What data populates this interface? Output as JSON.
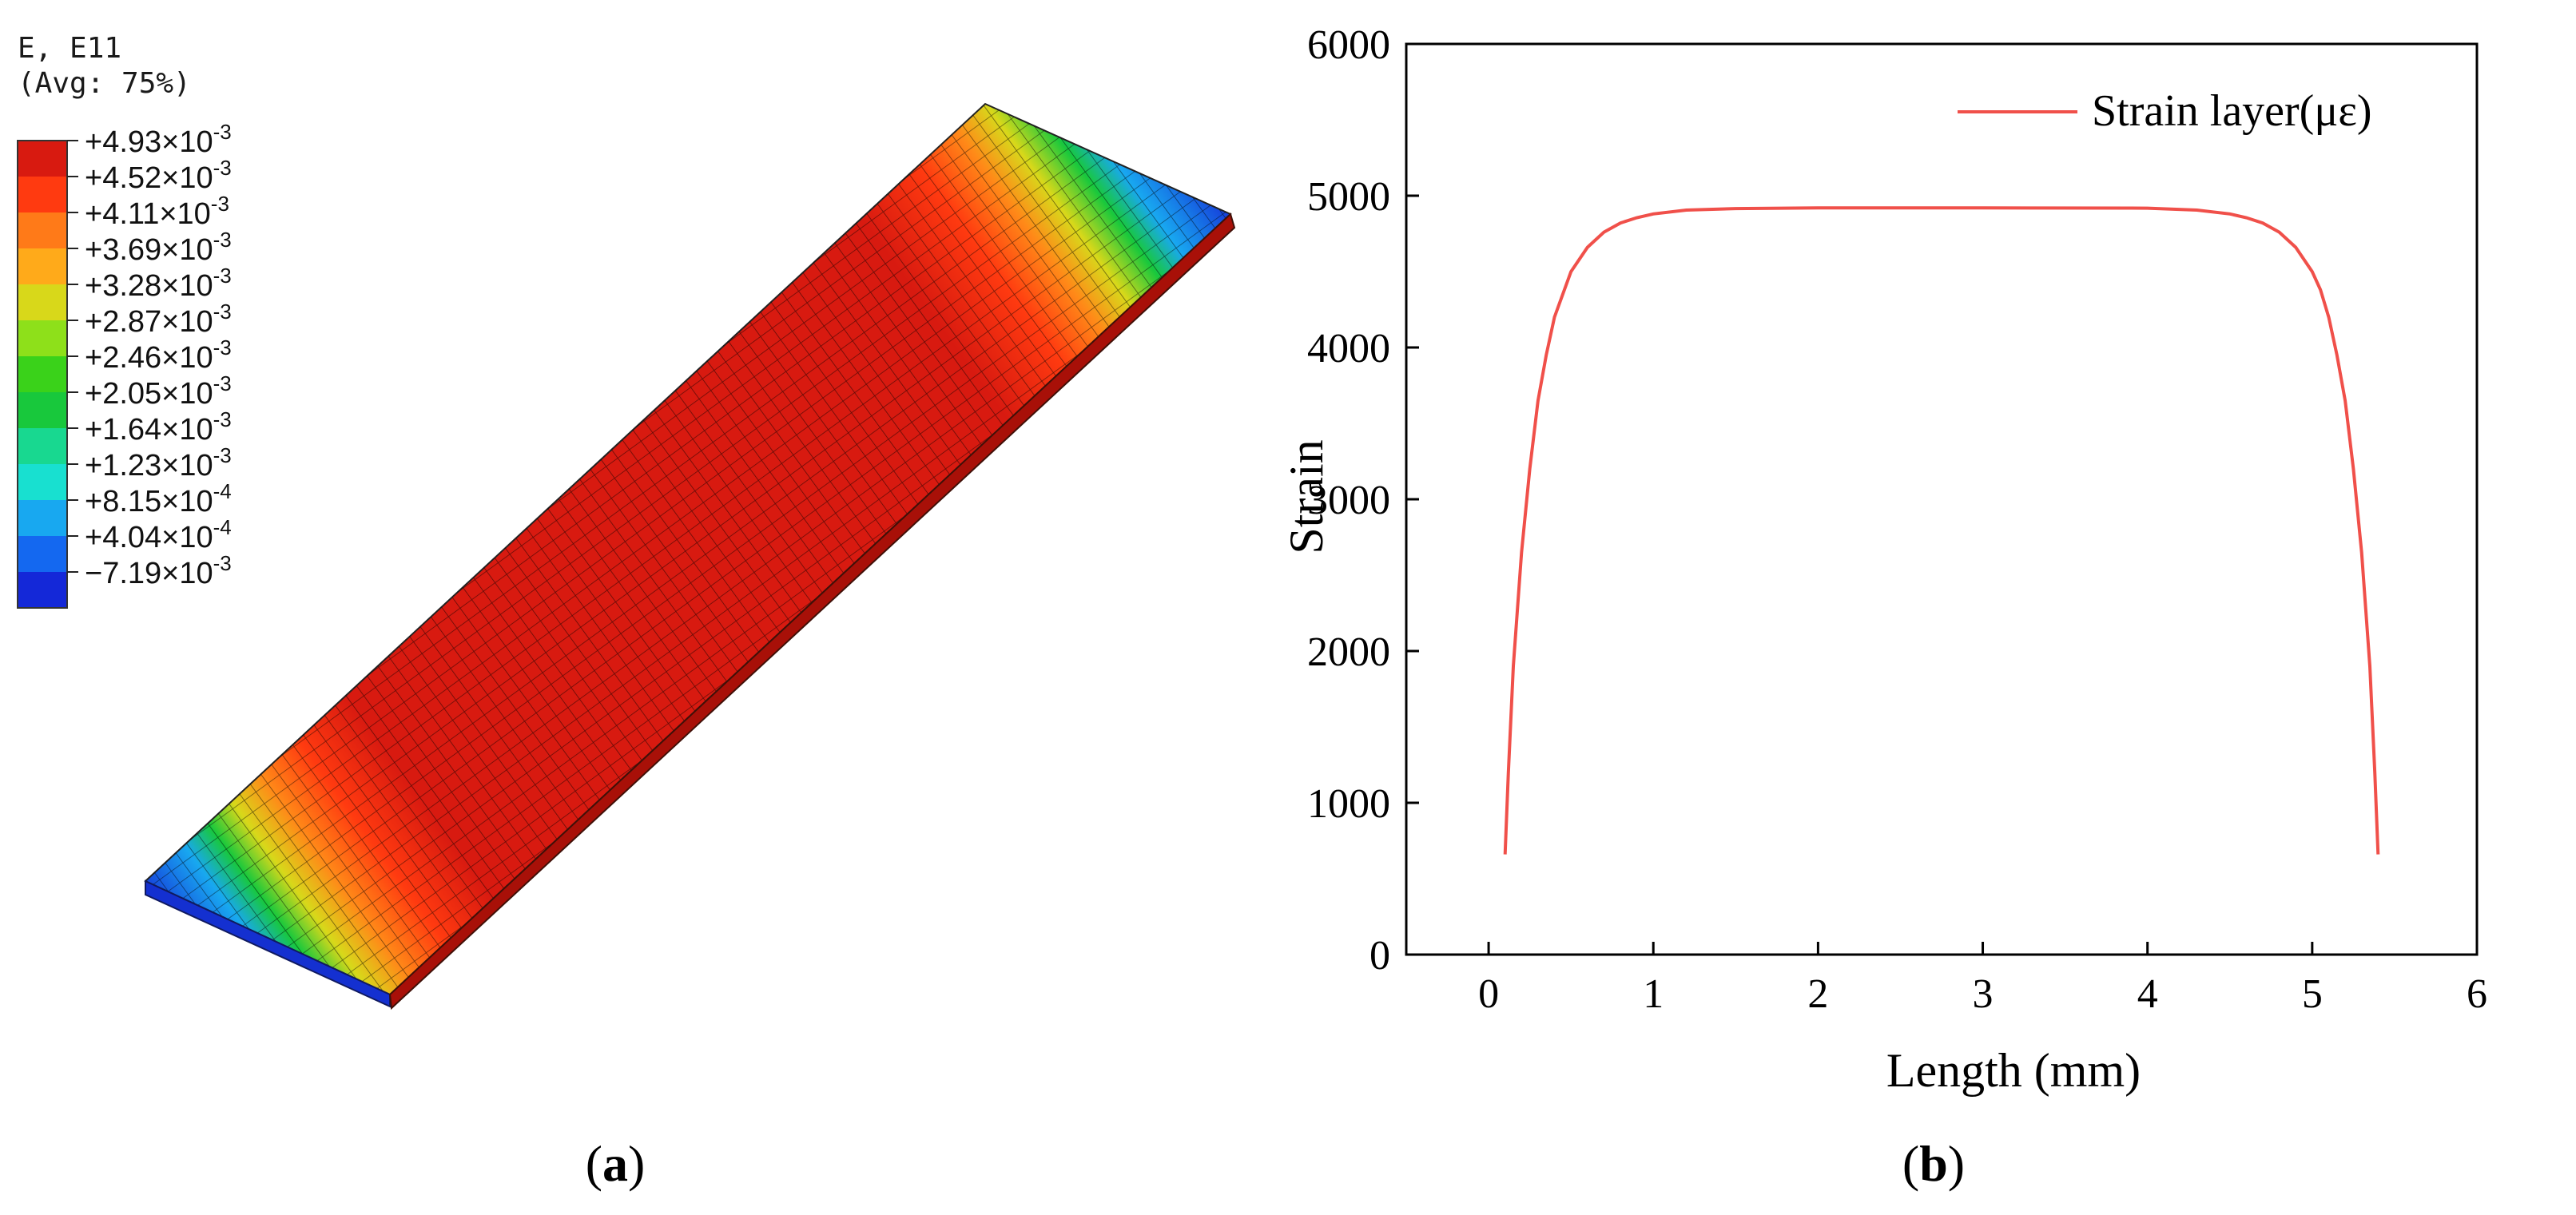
{
  "panel_a": {
    "legend_title_line1": "E, E11",
    "legend_title_line2": "(Avg: 75%)",
    "colorbar": {
      "colors": [
        "#d81a10",
        "#ff3a10",
        "#ff7a18",
        "#ffaa1a",
        "#d8d81a",
        "#8ee01a",
        "#3ad21a",
        "#18c83c",
        "#18d890",
        "#18e0d0",
        "#18a8f0",
        "#1468f0",
        "#1428d8"
      ],
      "labels": [
        {
          "mantissa": "+4.93×10",
          "exp": "-3"
        },
        {
          "mantissa": "+4.52×10",
          "exp": "-3"
        },
        {
          "mantissa": "+4.11×10",
          "exp": "-3"
        },
        {
          "mantissa": "+3.69×10",
          "exp": "-3"
        },
        {
          "mantissa": "+3.28×10",
          "exp": "-3"
        },
        {
          "mantissa": "+2.87×10",
          "exp": "-3"
        },
        {
          "mantissa": "+2.46×10",
          "exp": "-3"
        },
        {
          "mantissa": "+2.05×10",
          "exp": "-3"
        },
        {
          "mantissa": "+1.64×10",
          "exp": "-3"
        },
        {
          "mantissa": "+1.23×10",
          "exp": "-3"
        },
        {
          "mantissa": "+8.15×10",
          "exp": "-4"
        },
        {
          "mantissa": "+4.04×10",
          "exp": "-4"
        },
        {
          "mantissa": "−7.19×10",
          "exp": "-3"
        }
      ]
    },
    "caption": {
      "open": "(",
      "letter": "a",
      "close": ")"
    }
  },
  "chart_data": {
    "type": "line",
    "title": "",
    "xlabel": "Length (mm)",
    "ylabel": "Strain",
    "xlim": [
      -0.5,
      6
    ],
    "ylim": [
      0,
      6000
    ],
    "xticks": [
      0,
      1,
      2,
      3,
      4,
      5,
      6
    ],
    "yticks": [
      0,
      1000,
      2000,
      3000,
      4000,
      5000,
      6000
    ],
    "grid": false,
    "legend_position": "top-right",
    "series": [
      {
        "name": "Strain layer(με)",
        "color": "#f0504a",
        "x": [
          0.1,
          0.12,
          0.15,
          0.2,
          0.25,
          0.3,
          0.35,
          0.4,
          0.5,
          0.6,
          0.7,
          0.8,
          0.9,
          1.0,
          1.2,
          1.5,
          2.0,
          3.0,
          4.0,
          4.3,
          4.5,
          4.6,
          4.7,
          4.8,
          4.9,
          5.0,
          5.05,
          5.1,
          5.15,
          5.2,
          5.25,
          5.3,
          5.35,
          5.38,
          5.4
        ],
        "y": [
          660,
          1200,
          1900,
          2650,
          3200,
          3650,
          3950,
          4200,
          4500,
          4660,
          4760,
          4820,
          4855,
          4880,
          4905,
          4915,
          4920,
          4920,
          4918,
          4905,
          4880,
          4855,
          4820,
          4760,
          4660,
          4500,
          4380,
          4200,
          3950,
          3650,
          3200,
          2650,
          1900,
          1200,
          660
        ]
      }
    ]
  },
  "caption_b": {
    "open": "(",
    "letter": "b",
    "close": ")"
  }
}
